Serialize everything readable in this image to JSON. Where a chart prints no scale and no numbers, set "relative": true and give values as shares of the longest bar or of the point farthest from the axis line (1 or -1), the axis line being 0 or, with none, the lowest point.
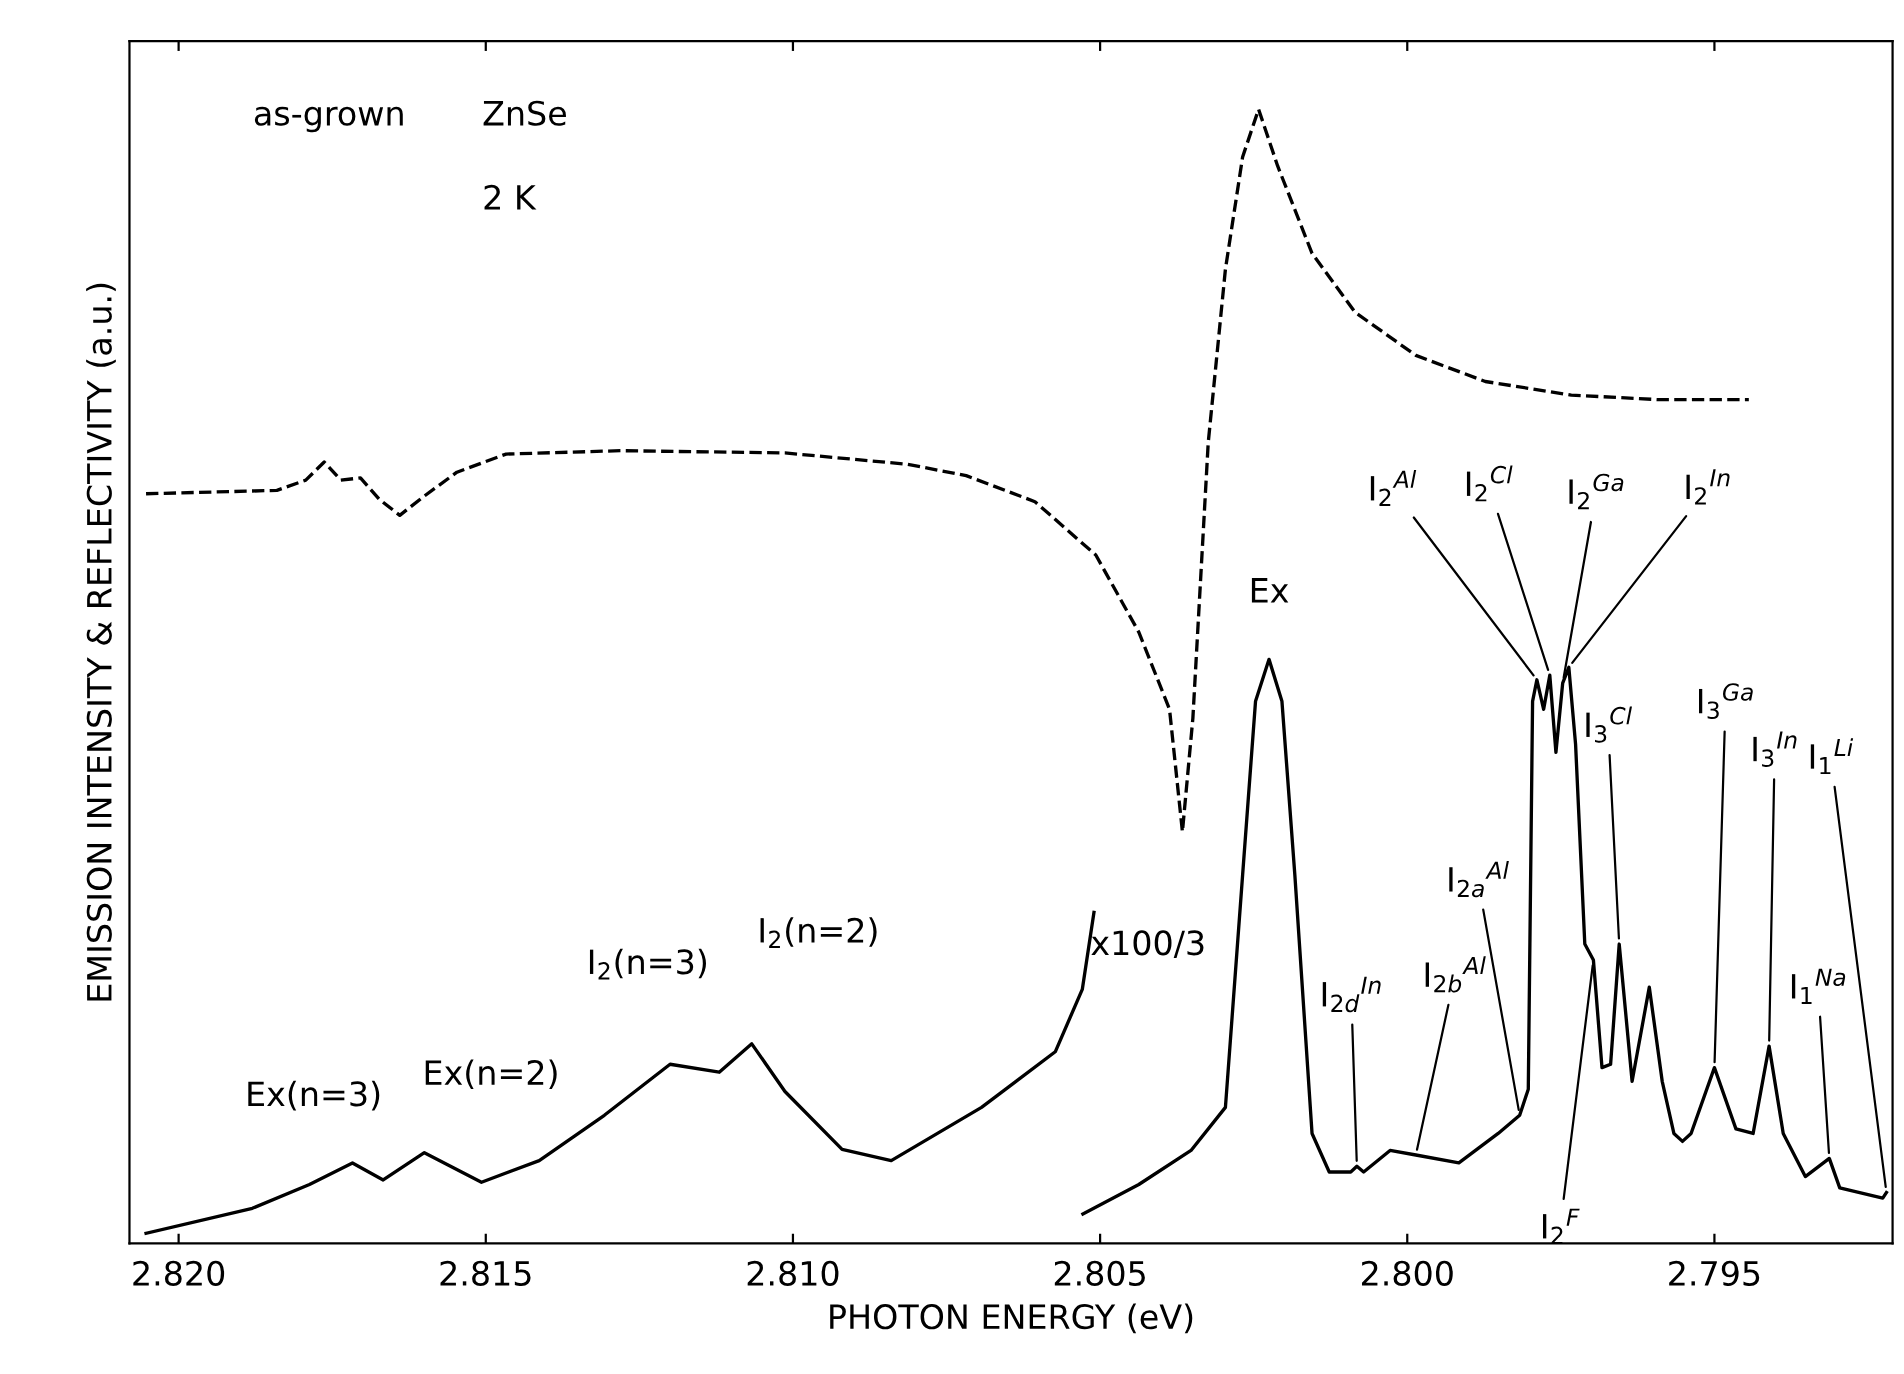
{
  "chart_data": {
    "type": "line",
    "relative": true,
    "xlabel": "PHOTON ENERGY (eV)",
    "ylabel": "EMISSION INTENSITY & REFLECTIVITY (a.u.)",
    "xlim": [
      2.8208,
      2.7921
    ],
    "xticks": [
      {
        "value": 2.82,
        "label": "2.820"
      },
      2.815,
      {
        "value": 2.81,
        "label": "2.810"
      },
      2.805,
      {
        "value": 2.8,
        "label": "2.800"
      },
      2.795
    ],
    "grid": false,
    "legend": false,
    "marker": "none",
    "series": [
      {
        "color": "#000000",
        "line_style": "dashed",
        "x": [
          2.82053,
          2.8184,
          2.81793,
          2.81763,
          2.81736,
          2.81704,
          2.81673,
          2.8164,
          2.816,
          2.81547,
          2.81467,
          2.8128,
          2.81013,
          2.80813,
          2.80718,
          2.80606,
          2.80507,
          2.80437,
          2.80387,
          2.80366,
          2.80349,
          2.80324,
          2.80296,
          2.80268,
          2.80242,
          2.80211,
          2.80155,
          2.80085,
          2.79986,
          2.79873,
          2.79733,
          2.79592,
          2.79444
        ],
        "values": [
          0.661,
          0.664,
          0.673,
          0.689,
          0.673,
          0.675,
          0.656,
          0.642,
          0.659,
          0.68,
          0.696,
          0.699,
          0.697,
          0.687,
          0.677,
          0.654,
          0.607,
          0.539,
          0.471,
          0.363,
          0.463,
          0.706,
          0.859,
          0.958,
          1.0,
          0.95,
          0.873,
          0.821,
          0.783,
          0.76,
          0.748,
          0.744,
          0.744
        ]
      },
      {
        "color": "#000000",
        "line_style": "solid",
        "x": [
          2.82053,
          2.8188,
          2.81787,
          2.81717,
          2.81667,
          2.816,
          2.81507,
          2.81413,
          2.81307,
          2.812,
          2.8112,
          2.81067,
          2.81013,
          2.8092,
          2.8084,
          2.80693,
          2.80573,
          2.80529,
          2.8051
        ],
        "values": [
          0.009,
          0.031,
          0.052,
          0.071,
          0.056,
          0.08,
          0.054,
          0.073,
          0.113,
          0.158,
          0.151,
          0.176,
          0.134,
          0.083,
          0.073,
          0.12,
          0.169,
          0.224,
          0.292
        ]
      },
      {
        "color": "#000000",
        "line_style": "solid",
        "x": [
          2.80528,
          2.80437,
          2.80352,
          2.80296,
          2.80268,
          2.80247,
          2.80225,
          2.80204,
          2.80183,
          2.80155,
          2.80127,
          2.80092,
          2.80082,
          2.80071,
          2.80028,
          2.79986,
          2.79916,
          2.79852,
          2.79817,
          2.79803,
          2.79796,
          2.79789,
          2.79778,
          2.79768,
          2.79758,
          2.79747,
          2.79737,
          2.79726,
          2.79711,
          2.79697,
          2.79683,
          2.79669,
          2.79655,
          2.79634,
          2.79606,
          2.79585,
          2.79566,
          2.79552,
          2.79538,
          2.795,
          2.79465,
          2.79437,
          2.79411,
          2.79388,
          2.79352,
          2.79313,
          2.79296,
          2.79226,
          2.7922
        ],
        "values": [
          0.026,
          0.052,
          0.082,
          0.12,
          0.325,
          0.478,
          0.515,
          0.478,
          0.325,
          0.097,
          0.063,
          0.063,
          0.068,
          0.063,
          0.082,
          0.078,
          0.071,
          0.097,
          0.113,
          0.136,
          0.478,
          0.497,
          0.471,
          0.501,
          0.433,
          0.494,
          0.508,
          0.44,
          0.264,
          0.25,
          0.155,
          0.158,
          0.264,
          0.143,
          0.226,
          0.143,
          0.097,
          0.09,
          0.097,
          0.155,
          0.101,
          0.097,
          0.174,
          0.097,
          0.059,
          0.075,
          0.049,
          0.04,
          0.045
        ]
      }
    ],
    "annotations": [
      "as-grown",
      "ZnSe",
      "2 K",
      "x100/3",
      {
        "text": "Ex(n=3)",
        "x": 2.81717,
        "y": 0.071
      },
      {
        "text": "Ex(n=2)",
        "x": 2.816,
        "y": 0.08
      },
      {
        "text": "I$_{2}$(n=3)",
        "x": 2.812,
        "y": 0.158
      },
      {
        "text": "I$_{2}$(n=2)",
        "x": 2.81067,
        "y": 0.176
      },
      {
        "text": "Ex",
        "x": 2.80225,
        "y": 0.515
      },
      {
        "text": "I$_{2d}$$^{In}$",
        "x": 2.80082,
        "y": 0.068
      },
      {
        "text": "I$_{2b}$$^{Al}$",
        "x": 2.79986,
        "y": 0.078
      },
      {
        "text": "I$_{2a}$$^{Al}$",
        "x": 2.79817,
        "y": 0.113
      },
      {
        "text": "I$_{2}$$^{Al}$",
        "x": 2.79789,
        "y": 0.497
      },
      {
        "text": "I$_{2}$$^{Cl}$",
        "x": 2.79768,
        "y": 0.501
      },
      {
        "text": "I$_{2}$$^{Ga}$",
        "x": 2.79747,
        "y": 0.494
      },
      {
        "text": "I$_{2}$$^{In}$",
        "x": 2.79737,
        "y": 0.508
      },
      {
        "text": "I$_{2}$$^{F}$",
        "x": 2.79697,
        "y": 0.25
      },
      {
        "text": "I$_{3}$$^{Cl}$",
        "x": 2.79655,
        "y": 0.264
      },
      {
        "text": "I$_{3}$$^{Ga}$",
        "x": 2.795,
        "y": 0.155
      },
      {
        "text": "I$_{3}$$^{In}$",
        "x": 2.79411,
        "y": 0.174
      },
      {
        "text": "I$_{1}$$^{Na}$",
        "x": 2.79313,
        "y": 0.075
      },
      {
        "text": "I$_{1}$$^{Li}$",
        "x": 2.7922,
        "y": 0.045
      }
    ]
  }
}
